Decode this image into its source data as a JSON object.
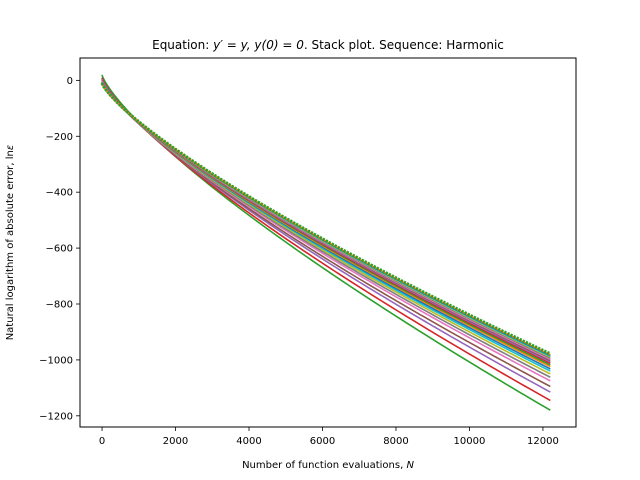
{
  "chart_data": {
    "type": "line",
    "title": {
      "prefix": "Equation: ",
      "equation": "y′ = y, y(0) = 0",
      "suffix": ". Stack plot. Sequence: Harmonic"
    },
    "xlabel": {
      "text": "Number of function evaluations, ",
      "symbol": "N"
    },
    "ylabel": {
      "text": "Natural logarithm of absolute error, ln",
      "symbol": "ε"
    },
    "xlim": [
      -600,
      12900
    ],
    "ylim": [
      -1240,
      80
    ],
    "xticks": [
      0,
      2000,
      4000,
      6000,
      8000,
      10000,
      12000
    ],
    "yticks": [
      0,
      -200,
      -400,
      -600,
      -800,
      -1000,
      -1200
    ],
    "grid": false,
    "curve_model": "y = y0 - a * x^b",
    "curve_exponent_b": 0.78,
    "curve_x_range": [
      0,
      12200
    ],
    "series": [
      {
        "color": "#2ca02c",
        "y0": 20,
        "end_y": -1180
      },
      {
        "color": "#d62728",
        "y0": 10,
        "end_y": -1145
      },
      {
        "color": "#9467bd",
        "y0": 5,
        "end_y": -1115
      },
      {
        "color": "#8c564b",
        "y0": 0,
        "end_y": -1095
      },
      {
        "color": "#e377c2",
        "y0": -2,
        "end_y": -1075
      },
      {
        "color": "#7f7f7f",
        "y0": -4,
        "end_y": -1062
      },
      {
        "color": "#bcbd22",
        "y0": -5,
        "end_y": -1050
      },
      {
        "color": "#17becf",
        "y0": -6,
        "end_y": -1040
      },
      {
        "color": "#1f77b4",
        "y0": -7,
        "end_y": -1032
      },
      {
        "color": "#ff7f0e",
        "y0": -8,
        "end_y": -1024
      },
      {
        "color": "#2ca02c",
        "y0": -8,
        "end_y": -1018
      },
      {
        "color": "#d62728",
        "y0": -9,
        "end_y": -1012
      },
      {
        "color": "#9467bd",
        "y0": -9,
        "end_y": -1007
      },
      {
        "color": "#8c564b",
        "y0": -9,
        "end_y": -1002
      },
      {
        "color": "#e377c2",
        "y0": -10,
        "end_y": -998
      },
      {
        "color": "#7f7f7f",
        "y0": -10,
        "end_y": -994
      },
      {
        "color": "#bcbd22",
        "y0": -10,
        "end_y": -990
      },
      {
        "color": "#17becf",
        "y0": -10,
        "end_y": -987
      },
      {
        "color": "#1f77b4",
        "y0": -10,
        "end_y": -984
      },
      {
        "color": "#ff7f0e",
        "y0": -10,
        "end_y": -981
      },
      {
        "color": "#2ca02c",
        "y0": -10,
        "end_y": -978
      }
    ]
  }
}
